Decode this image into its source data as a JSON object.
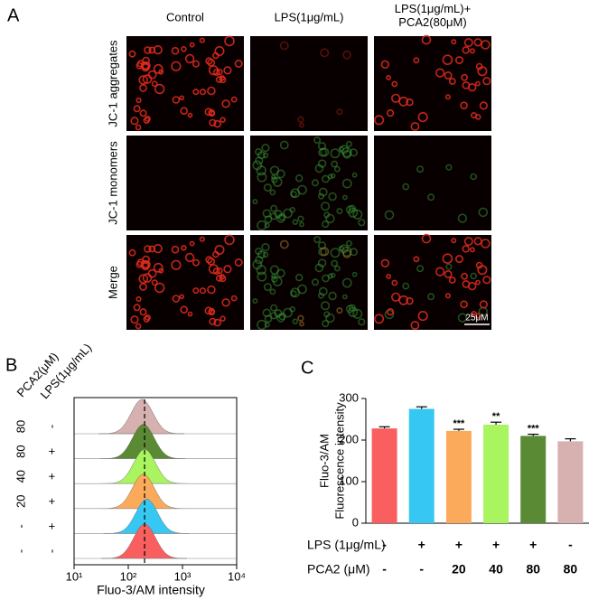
{
  "panel_a": {
    "label": "A",
    "columns": [
      [
        "Control"
      ],
      [
        "LPS(1μg/mL)"
      ],
      [
        "LPS(1μg/mL)+",
        "PCA2(80μM)"
      ]
    ],
    "rows": [
      "JC-1 aggregates",
      "JC-1 monomers",
      "Merge"
    ],
    "scale_bar": "25μM"
  },
  "chart_data": [
    {
      "type": "density",
      "panel_label": "B",
      "row_headers": [
        "PCA2(μM)",
        "LPS(1μg/mL)"
      ],
      "series": [
        {
          "pca2": "80",
          "lps": "-",
          "color": "#d7b0b0",
          "peak": 180
        },
        {
          "pca2": "80",
          "lps": "+",
          "color": "#5b8a35",
          "peak": 190
        },
        {
          "pca2": "40",
          "lps": "+",
          "color": "#a8f560",
          "peak": 200
        },
        {
          "pca2": "20",
          "lps": "+",
          "color": "#fbaa5c",
          "peak": 190
        },
        {
          "pca2": "-",
          "lps": "+",
          "color": "#36c8f2",
          "peak": 220
        },
        {
          "pca2": "-",
          "lps": "-",
          "color": "#fa5f5f",
          "peak": 200
        }
      ],
      "xlim": [
        10,
        10000
      ],
      "xticks": [
        {
          "value": 10,
          "label": "10¹"
        },
        {
          "value": 100,
          "label": "10²"
        },
        {
          "value": 1000,
          "label": "10³"
        },
        {
          "value": 10000,
          "label": "10⁴"
        }
      ],
      "log_x": true,
      "reference_line": 200,
      "xlabel": "Fluo-3/AM intensity"
    },
    {
      "type": "bar",
      "panel_label": "C",
      "ylabel": [
        "Fluo-3/AM",
        "Fluorescence intensity"
      ],
      "values": [
        228,
        275,
        222,
        237,
        210,
        197
      ],
      "errors": [
        4,
        5,
        4,
        6,
        4,
        6
      ],
      "colors": [
        "#fa5f5f",
        "#36c8f2",
        "#fbaa5c",
        "#a8f560",
        "#5b8a35",
        "#d7b0b0"
      ],
      "annotations": [
        null,
        null,
        "***",
        "**",
        "***",
        null
      ],
      "ylim": [
        0,
        300
      ],
      "yticks": [
        0,
        100,
        200,
        300
      ],
      "row_labels": [
        "LPS (1μg/mL)",
        "PCA2 (μM)"
      ],
      "rows": [
        [
          "-",
          "+",
          "+",
          "+",
          "+",
          "-"
        ],
        [
          "-",
          "-",
          "20",
          "40",
          "80",
          "80"
        ]
      ]
    }
  ]
}
